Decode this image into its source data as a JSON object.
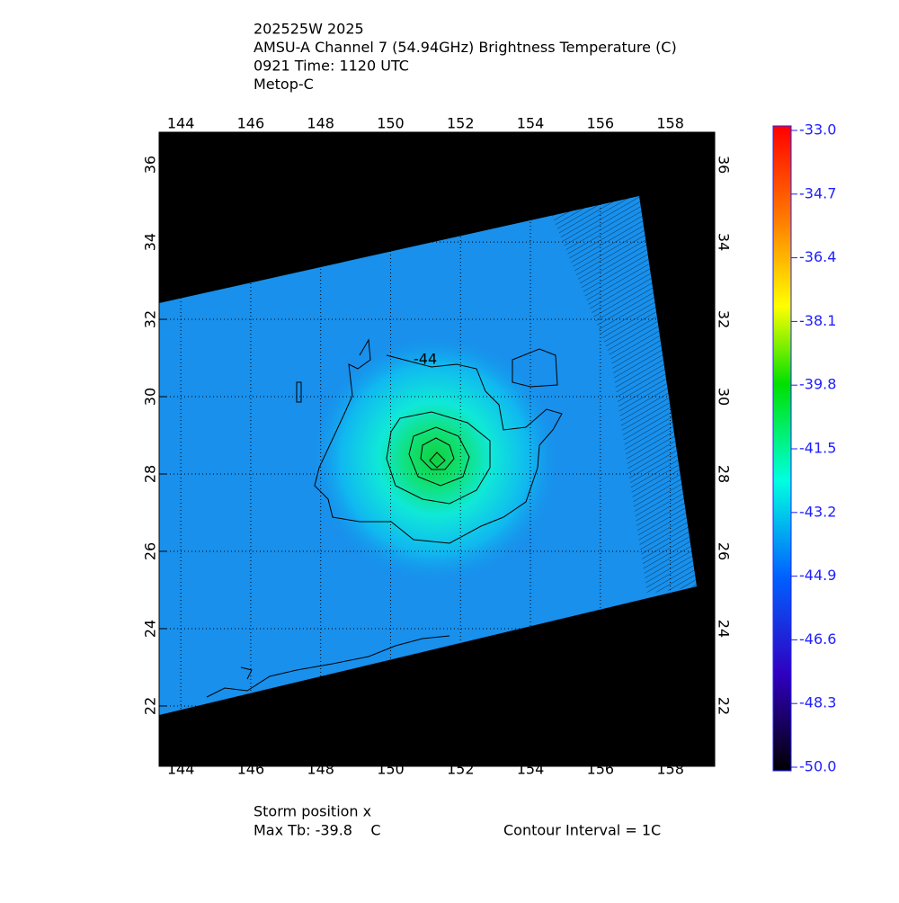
{
  "chart_data": {
    "type": "map",
    "title_lines": [
      "202525W 2025",
      "AMSU-A Channel 7 (54.94GHz) Brightness Temperature (C)",
      "0921 Time: 1120 UTC",
      "Metop-C"
    ],
    "xlim": [
      143.38,
      159.27
    ],
    "xticks": [
      144,
      146,
      148,
      150,
      152,
      154,
      156,
      158
    ],
    "ylim": [
      20.44,
      36.84
    ],
    "yticks": [
      22,
      24,
      26,
      28,
      30,
      32,
      34,
      36
    ],
    "grid": true,
    "colorbar": {
      "lim": [
        -50,
        -33
      ],
      "ticks": [
        {
          "value": -33,
          "label": "-33.0"
        },
        {
          "value": -34.7,
          "label": "-34.7"
        },
        {
          "value": -36.4,
          "label": "-36.4"
        },
        {
          "value": -38.1,
          "label": "-38.1"
        },
        {
          "value": -39.8,
          "label": "-39.8"
        },
        {
          "value": -41.5,
          "label": "-41.5"
        },
        {
          "value": -43.2,
          "label": "-43.2"
        },
        {
          "value": -44.9,
          "label": "-44.9"
        },
        {
          "value": -46.6,
          "label": "-46.6"
        },
        {
          "value": -48.3,
          "label": "-48.3"
        },
        {
          "value": -50,
          "label": "-50.0"
        }
      ]
    },
    "contour_label": "-44",
    "footer": [
      "Storm position x",
      "Max Tb: -39.8    C",
      "Contour Interval = 1C"
    ]
  }
}
